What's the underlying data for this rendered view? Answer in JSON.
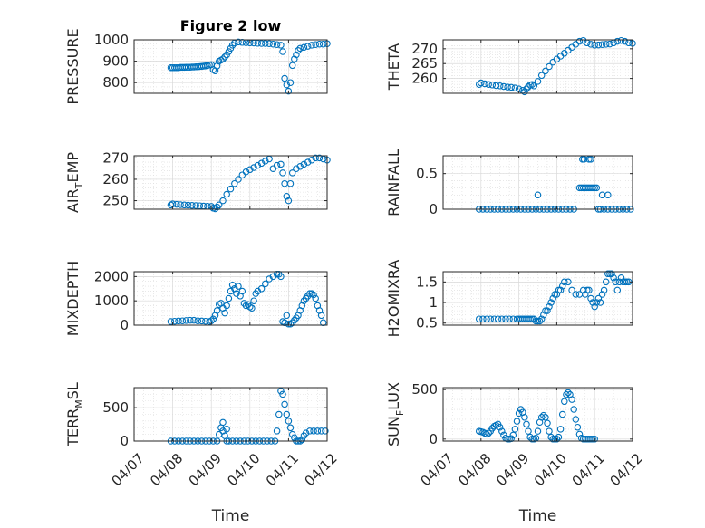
{
  "figure": {
    "title": "Figure 2 low",
    "marker_color": "#0072bd"
  },
  "x_axis": {
    "label": "Time",
    "ticks": [
      "04/07",
      "04/08",
      "04/09",
      "04/10",
      "04/11",
      "04/12"
    ],
    "tick_values": [
      0,
      1,
      2,
      3,
      4,
      5
    ]
  },
  "chart_data": [
    {
      "type": "scatter",
      "title": "Figure 2 low",
      "ylabel": "PRESSURE",
      "grid": true,
      "ylim": [
        750,
        1000
      ],
      "yticks": [
        800,
        900,
        1000
      ],
      "ytick_labels": [
        "800",
        "900",
        "1000"
      ],
      "x": [
        0.95,
        1.0,
        1.05,
        1.1,
        1.15,
        1.2,
        1.25,
        1.3,
        1.35,
        1.4,
        1.45,
        1.5,
        1.55,
        1.6,
        1.65,
        1.7,
        1.75,
        1.8,
        1.85,
        1.9,
        1.95,
        2.0,
        2.05,
        2.1,
        2.15,
        2.2,
        2.25,
        2.3,
        2.35,
        2.4,
        2.45,
        2.5,
        2.55,
        2.6,
        2.7,
        2.8,
        2.9,
        3.0,
        3.1,
        3.2,
        3.3,
        3.4,
        3.5,
        3.6,
        3.7,
        3.8,
        3.85,
        3.9,
        3.95,
        4.0,
        4.05,
        4.1,
        4.15,
        4.2,
        4.25,
        4.3,
        4.4,
        4.5,
        4.6,
        4.7,
        4.8,
        4.9,
        5.0
      ],
      "y": [
        870,
        870,
        870,
        870,
        870,
        871,
        871,
        871,
        872,
        872,
        872,
        873,
        873,
        874,
        874,
        875,
        876,
        877,
        878,
        880,
        882,
        884,
        860,
        855,
        878,
        900,
        905,
        910,
        920,
        930,
        945,
        960,
        975,
        985,
        990,
        988,
        987,
        986,
        985,
        984,
        983,
        983,
        982,
        980,
        978,
        975,
        945,
        820,
        790,
        760,
        800,
        880,
        910,
        930,
        950,
        960,
        965,
        970,
        975,
        978,
        980,
        980,
        982
      ]
    },
    {
      "type": "scatter",
      "title": "",
      "ylabel": "THETA",
      "grid": true,
      "ylim": [
        255,
        273
      ],
      "yticks": [
        260,
        265,
        270
      ],
      "ytick_labels": [
        "260",
        "265",
        "270"
      ],
      "x": [
        0.95,
        1.0,
        1.1,
        1.2,
        1.3,
        1.4,
        1.5,
        1.6,
        1.7,
        1.8,
        1.9,
        2.0,
        2.1,
        2.15,
        2.2,
        2.25,
        2.3,
        2.35,
        2.4,
        2.5,
        2.6,
        2.7,
        2.8,
        2.9,
        3.0,
        3.1,
        3.2,
        3.3,
        3.4,
        3.5,
        3.6,
        3.7,
        3.8,
        3.9,
        4.0,
        4.1,
        4.2,
        4.3,
        4.4,
        4.5,
        4.6,
        4.7,
        4.8,
        4.9,
        5.0
      ],
      "y": [
        258,
        258.5,
        258.2,
        258,
        257.8,
        257.6,
        257.5,
        257.3,
        257.1,
        257,
        256.8,
        256.5,
        256,
        255.5,
        256.5,
        257.2,
        257.8,
        258,
        257.5,
        259,
        261,
        262.5,
        264,
        265.5,
        266.5,
        267.5,
        268.5,
        269.5,
        270.5,
        271.5,
        272.5,
        272.8,
        272,
        271.5,
        271.2,
        271.3,
        271.4,
        271.5,
        271.6,
        272,
        272.5,
        272.8,
        272.5,
        272,
        271.8
      ]
    },
    {
      "type": "scatter",
      "title": "",
      "ylabel": "AIR_TEMP",
      "grid": true,
      "ylim": [
        246,
        271
      ],
      "yticks": [
        250,
        260,
        270
      ],
      "ytick_labels": [
        "250",
        "260",
        "270"
      ],
      "x": [
        0.95,
        1.0,
        1.1,
        1.2,
        1.3,
        1.4,
        1.5,
        1.6,
        1.7,
        1.8,
        1.9,
        2.0,
        2.05,
        2.1,
        2.15,
        2.2,
        2.3,
        2.4,
        2.5,
        2.6,
        2.7,
        2.8,
        2.9,
        3.0,
        3.1,
        3.2,
        3.3,
        3.4,
        3.5,
        3.6,
        3.7,
        3.8,
        3.85,
        3.9,
        3.95,
        4.0,
        4.05,
        4.1,
        4.2,
        4.3,
        4.4,
        4.5,
        4.6,
        4.7,
        4.8,
        4.9,
        5.0
      ],
      "y": [
        248,
        248.5,
        248.3,
        248.1,
        248,
        247.9,
        247.8,
        247.7,
        247.6,
        247.5,
        247.4,
        247.3,
        246.5,
        246.2,
        247,
        248,
        250,
        253,
        255.5,
        258,
        260,
        262,
        263.5,
        264.5,
        265.5,
        266.5,
        267.5,
        268.5,
        269.5,
        265,
        266.5,
        267,
        263,
        258,
        252,
        250,
        258,
        263,
        265,
        266,
        267,
        268,
        269,
        270,
        270,
        269.5,
        269
      ]
    },
    {
      "type": "scatter",
      "title": "",
      "ylabel": "RAINFALL",
      "grid": true,
      "ylim": [
        0,
        0.75
      ],
      "yticks": [
        0,
        0.5
      ],
      "ytick_labels": [
        "0",
        "0.5"
      ],
      "x": [
        0.95,
        1.05,
        1.15,
        1.25,
        1.35,
        1.45,
        1.55,
        1.65,
        1.75,
        1.85,
        1.95,
        2.05,
        2.15,
        2.25,
        2.35,
        2.45,
        2.55,
        2.65,
        2.75,
        2.85,
        2.95,
        3.05,
        3.15,
        3.25,
        3.35,
        3.45,
        2.5,
        3.6,
        3.65,
        3.7,
        3.75,
        3.8,
        3.85,
        3.9,
        3.95,
        4.0,
        4.05,
        3.68,
        3.72,
        3.85,
        3.9,
        4.1,
        4.15,
        4.25,
        4.35,
        4.45,
        4.55,
        4.65,
        4.75,
        4.85,
        4.95,
        4.2,
        4.35
      ],
      "y": [
        0,
        0,
        0,
        0,
        0,
        0,
        0,
        0,
        0,
        0,
        0,
        0,
        0,
        0,
        0,
        0,
        0,
        0,
        0,
        0,
        0,
        0,
        0,
        0,
        0,
        0,
        0.2,
        0.3,
        0.3,
        0.3,
        0.3,
        0.3,
        0.3,
        0.3,
        0.3,
        0.3,
        0.3,
        0.7,
        0.7,
        0.7,
        0.7,
        0,
        0,
        0,
        0,
        0,
        0,
        0,
        0,
        0,
        0,
        0.2,
        0.2
      ]
    },
    {
      "type": "scatter",
      "title": "",
      "ylabel": "MIXDEPTH",
      "grid": true,
      "ylim": [
        0,
        2200
      ],
      "yticks": [
        0,
        1000,
        2000
      ],
      "ytick_labels": [
        "0",
        "1000",
        "2000"
      ],
      "x": [
        0.95,
        1.05,
        1.15,
        1.25,
        1.35,
        1.45,
        1.55,
        1.65,
        1.75,
        1.85,
        1.95,
        2.0,
        2.05,
        2.1,
        2.15,
        2.2,
        2.25,
        2.3,
        2.35,
        2.4,
        2.45,
        2.5,
        2.55,
        2.6,
        2.65,
        2.7,
        2.75,
        2.8,
        2.85,
        2.9,
        2.95,
        3.0,
        3.05,
        3.1,
        3.15,
        3.2,
        3.3,
        3.4,
        3.5,
        3.6,
        3.7,
        3.75,
        3.8,
        3.85,
        3.9,
        3.95,
        4.0,
        4.05,
        4.1,
        4.15,
        4.2,
        4.25,
        4.3,
        4.35,
        4.4,
        4.45,
        4.5,
        4.55,
        4.6,
        4.65,
        4.7,
        4.75,
        4.8,
        4.85,
        4.9
      ],
      "y": [
        150,
        160,
        170,
        180,
        190,
        200,
        200,
        180,
        170,
        160,
        150,
        180,
        250,
        400,
        600,
        850,
        900,
        700,
        500,
        800,
        1100,
        1400,
        1650,
        1500,
        1300,
        1600,
        1200,
        1400,
        900,
        800,
        850,
        750,
        700,
        1000,
        1300,
        1400,
        1500,
        1700,
        1900,
        2000,
        2100,
        2100,
        2000,
        150,
        100,
        400,
        50,
        50,
        100,
        200,
        300,
        400,
        600,
        800,
        1000,
        1100,
        1200,
        1300,
        1300,
        1250,
        1100,
        800,
        600,
        400,
        100
      ]
    },
    {
      "type": "scatter",
      "title": "",
      "ylabel": "H2OMIXRA",
      "grid": true,
      "ylim": [
        0.45,
        1.75
      ],
      "yticks": [
        0.5,
        1,
        1.5
      ],
      "ytick_labels": [
        "0.5",
        "1",
        "1.5"
      ],
      "x": [
        0.95,
        1.05,
        1.15,
        1.25,
        1.35,
        1.45,
        1.55,
        1.65,
        1.75,
        1.85,
        1.95,
        2.0,
        2.05,
        2.1,
        2.15,
        2.2,
        2.25,
        2.3,
        2.35,
        2.4,
        2.45,
        2.5,
        2.55,
        2.6,
        2.65,
        2.7,
        2.75,
        2.8,
        2.85,
        2.9,
        2.95,
        3.0,
        3.05,
        3.1,
        3.15,
        3.2,
        3.3,
        3.4,
        3.5,
        3.6,
        3.7,
        3.75,
        3.8,
        3.85,
        3.9,
        3.95,
        4.0,
        4.05,
        4.1,
        4.15,
        4.2,
        4.25,
        4.3,
        4.35,
        4.4,
        4.45,
        4.5,
        4.55,
        4.6,
        4.65,
        4.7,
        4.75,
        4.8,
        4.85,
        4.9
      ],
      "y": [
        0.6,
        0.6,
        0.6,
        0.6,
        0.6,
        0.6,
        0.6,
        0.6,
        0.6,
        0.6,
        0.6,
        0.6,
        0.6,
        0.6,
        0.6,
        0.6,
        0.6,
        0.6,
        0.6,
        0.6,
        0.55,
        0.55,
        0.55,
        0.6,
        0.7,
        0.8,
        0.8,
        0.9,
        1.0,
        1.1,
        1.2,
        1.2,
        1.3,
        1.3,
        1.4,
        1.5,
        1.5,
        1.3,
        1.2,
        1.2,
        1.3,
        1.2,
        1.3,
        1.3,
        1.1,
        1.0,
        0.9,
        1.0,
        1.1,
        1.0,
        1.2,
        1.3,
        1.5,
        1.7,
        1.7,
        1.7,
        1.6,
        1.5,
        1.3,
        1.5,
        1.6,
        1.5,
        1.5,
        1.5,
        1.5
      ]
    },
    {
      "type": "scatter",
      "title": "",
      "ylabel": "TERR_MSL",
      "grid": true,
      "ylim": [
        0,
        800
      ],
      "yticks": [
        0,
        500
      ],
      "ytick_labels": [
        "0",
        "500"
      ],
      "x": [
        0.95,
        1.05,
        1.15,
        1.25,
        1.35,
        1.45,
        1.55,
        1.65,
        1.75,
        1.85,
        1.95,
        2.05,
        2.15,
        2.2,
        2.25,
        2.3,
        2.35,
        2.4,
        2.45,
        2.55,
        2.65,
        2.75,
        2.85,
        2.95,
        3.05,
        3.15,
        3.25,
        3.35,
        3.45,
        3.55,
        3.65,
        3.7,
        3.75,
        3.8,
        3.85,
        3.9,
        3.95,
        4.0,
        4.05,
        4.1,
        4.15,
        4.2,
        4.25,
        4.3,
        4.35,
        4.4,
        4.45,
        4.55,
        4.65,
        4.75,
        4.85,
        4.95,
        2.3,
        2.4
      ],
      "y": [
        0,
        0,
        0,
        0,
        0,
        0,
        0,
        0,
        0,
        0,
        0,
        0,
        0,
        100,
        200,
        150,
        80,
        0,
        0,
        0,
        0,
        0,
        0,
        0,
        0,
        0,
        0,
        0,
        0,
        0,
        0,
        150,
        400,
        750,
        700,
        550,
        400,
        300,
        200,
        100,
        50,
        0,
        0,
        0,
        20,
        80,
        120,
        150,
        150,
        150,
        150,
        150,
        280,
        180
      ]
    },
    {
      "type": "scatter",
      "title": "",
      "ylabel": "SUN_FLUX",
      "grid": true,
      "ylim": [
        -20,
        520
      ],
      "yticks": [
        0,
        500
      ],
      "ytick_labels": [
        "0",
        "500"
      ],
      "x": [
        0.95,
        1.0,
        1.05,
        1.1,
        1.15,
        1.2,
        1.25,
        1.3,
        1.35,
        1.4,
        1.45,
        1.5,
        1.55,
        1.6,
        1.65,
        1.7,
        1.75,
        1.8,
        1.85,
        1.9,
        1.95,
        2.0,
        2.05,
        2.1,
        2.15,
        2.2,
        2.25,
        2.3,
        2.35,
        2.4,
        2.45,
        2.5,
        2.55,
        2.6,
        2.65,
        2.7,
        2.75,
        2.8,
        2.85,
        2.9,
        2.95,
        3.0,
        3.05,
        3.1,
        3.15,
        3.2,
        3.25,
        3.3,
        3.35,
        3.4,
        3.45,
        3.5,
        3.55,
        3.6,
        3.65,
        3.7,
        3.75,
        3.8,
        3.85,
        3.9,
        3.95,
        4.0
      ],
      "y": [
        80,
        75,
        70,
        60,
        50,
        60,
        80,
        110,
        130,
        140,
        150,
        120,
        80,
        40,
        10,
        0,
        0,
        5,
        40,
        100,
        180,
        260,
        300,
        270,
        220,
        150,
        80,
        20,
        0,
        0,
        10,
        80,
        170,
        220,
        240,
        220,
        160,
        80,
        20,
        0,
        0,
        0,
        20,
        100,
        250,
        380,
        450,
        470,
        450,
        400,
        300,
        200,
        120,
        50,
        10,
        0,
        0,
        0,
        0,
        0,
        0,
        0
      ]
    }
  ]
}
